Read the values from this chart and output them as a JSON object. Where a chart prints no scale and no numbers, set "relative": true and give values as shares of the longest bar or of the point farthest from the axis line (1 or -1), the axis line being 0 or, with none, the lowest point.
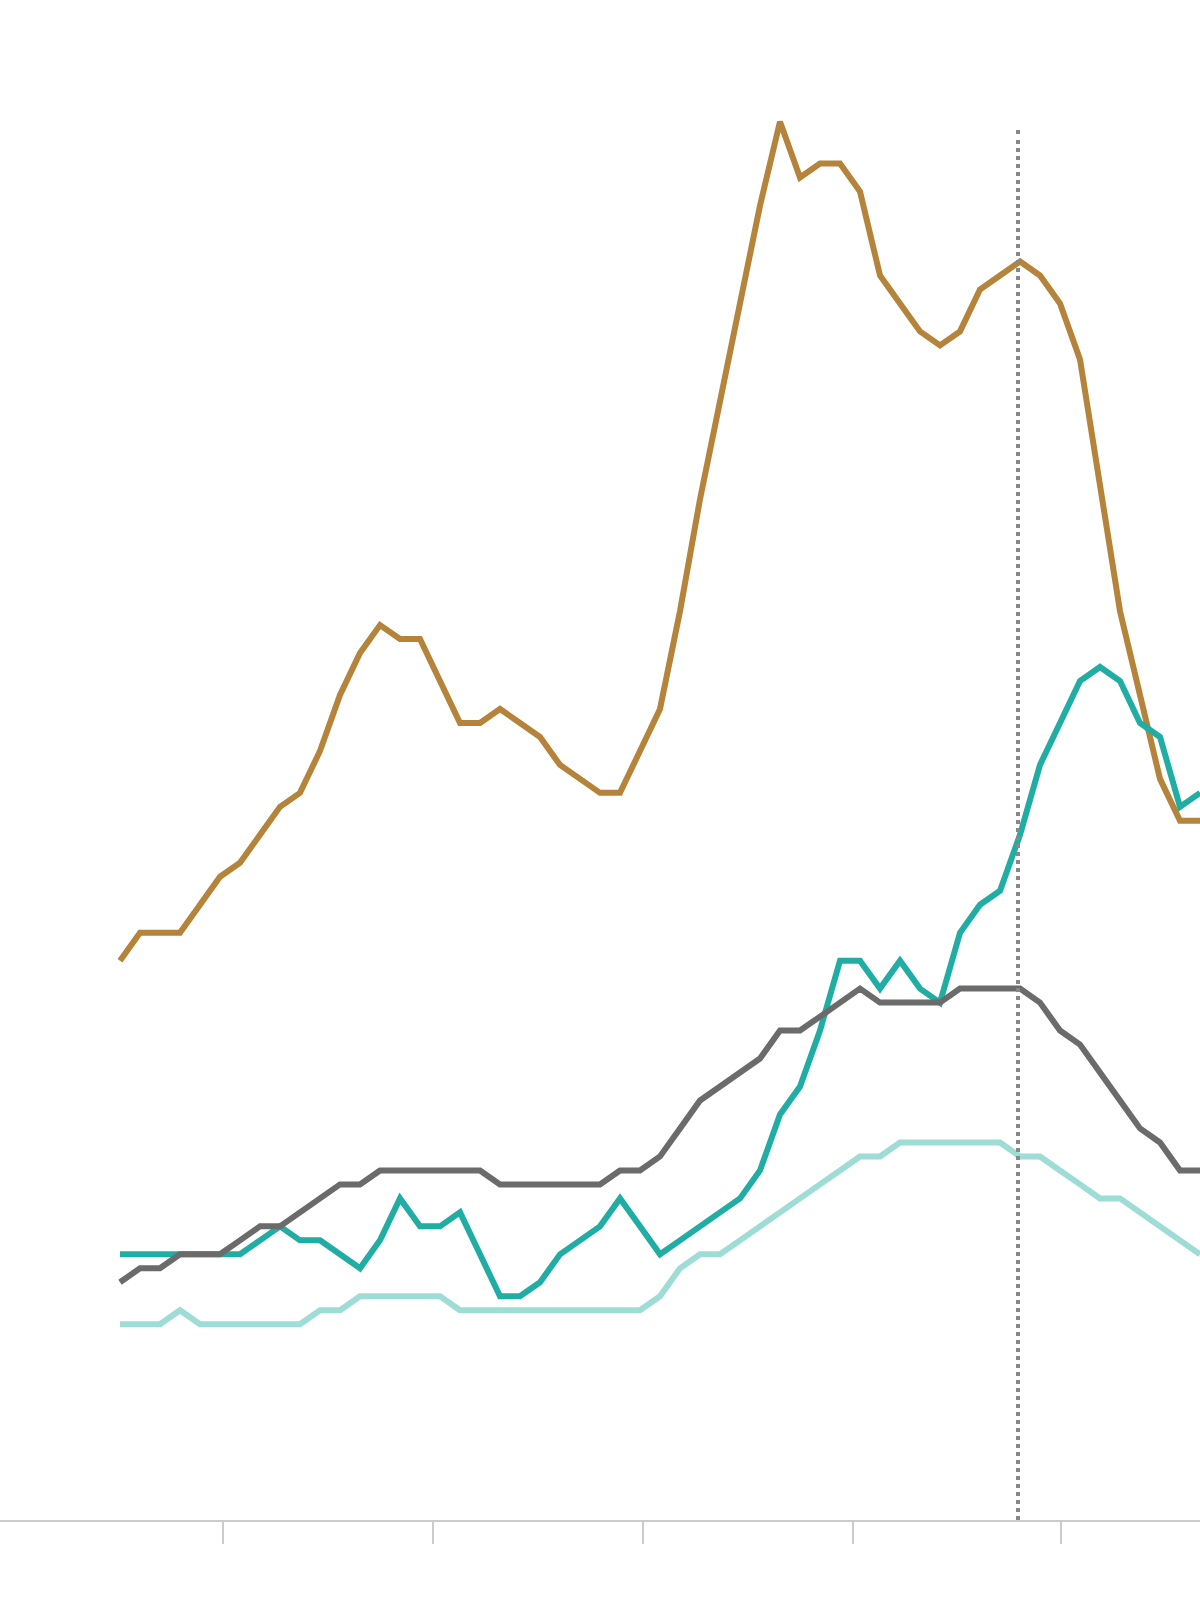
{
  "chart_data": {
    "type": "line",
    "relative": true,
    "line_style": "solid",
    "categories": [
      null,
      null,
      null,
      null,
      null,
      null,
      null,
      null,
      null,
      null,
      null,
      null,
      null,
      null,
      null,
      null,
      null,
      null,
      null,
      null,
      null,
      null,
      null,
      null,
      null,
      null,
      null,
      null,
      null,
      null,
      null,
      null,
      null,
      null,
      null,
      null,
      null,
      null,
      null,
      null,
      null,
      null,
      null,
      null,
      null,
      null,
      null,
      null,
      null,
      null,
      null,
      null,
      null,
      null,
      null
    ],
    "series": [
      {
        "color": "#b5843a",
        "values": [
          0.4,
          0.42,
          0.42,
          0.42,
          0.44,
          0.46,
          0.47,
          0.49,
          0.51,
          0.52,
          0.55,
          0.59,
          0.62,
          0.64,
          0.63,
          0.63,
          0.6,
          0.57,
          0.57,
          0.58,
          0.57,
          0.56,
          0.54,
          0.53,
          0.52,
          0.52,
          0.55,
          0.58,
          0.65,
          0.73,
          0.8,
          0.87,
          0.94,
          1.0,
          0.96,
          0.97,
          0.97,
          0.95,
          0.89,
          0.87,
          0.85,
          0.84,
          0.85,
          0.88,
          0.89,
          0.9,
          0.89,
          0.87,
          0.83,
          0.74,
          0.65,
          0.59,
          0.53,
          0.5,
          0.5
        ]
      },
      {
        "color": "#20ada4",
        "values": [
          0.19,
          0.19,
          0.19,
          0.19,
          0.19,
          0.19,
          0.19,
          0.2,
          0.21,
          0.2,
          0.2,
          0.19,
          0.18,
          0.2,
          0.23,
          0.21,
          0.21,
          0.22,
          0.19,
          0.16,
          0.16,
          0.17,
          0.19,
          0.2,
          0.21,
          0.23,
          0.21,
          0.19,
          0.2,
          0.21,
          0.22,
          0.23,
          0.25,
          0.29,
          0.31,
          0.35,
          0.4,
          0.4,
          0.38,
          0.4,
          0.38,
          0.37,
          0.42,
          0.44,
          0.45,
          0.49,
          0.54,
          0.57,
          0.6,
          0.61,
          0.6,
          0.57,
          0.56,
          0.51,
          0.52
        ]
      },
      {
        "color": "#6b6b6b",
        "values": [
          0.17,
          0.18,
          0.18,
          0.19,
          0.19,
          0.19,
          0.2,
          0.21,
          0.21,
          0.22,
          0.23,
          0.24,
          0.24,
          0.25,
          0.25,
          0.25,
          0.25,
          0.25,
          0.25,
          0.24,
          0.24,
          0.24,
          0.24,
          0.24,
          0.24,
          0.25,
          0.25,
          0.26,
          0.28,
          0.3,
          0.31,
          0.32,
          0.33,
          0.35,
          0.35,
          0.36,
          0.37,
          0.38,
          0.37,
          0.37,
          0.37,
          0.37,
          0.38,
          0.38,
          0.38,
          0.38,
          0.37,
          0.35,
          0.34,
          0.32,
          0.3,
          0.28,
          0.27,
          0.25,
          0.25
        ]
      },
      {
        "color": "#9edcd6",
        "values": [
          0.14,
          0.14,
          0.14,
          0.15,
          0.14,
          0.14,
          0.14,
          0.14,
          0.14,
          0.14,
          0.15,
          0.15,
          0.16,
          0.16,
          0.16,
          0.16,
          0.16,
          0.15,
          0.15,
          0.15,
          0.15,
          0.15,
          0.15,
          0.15,
          0.15,
          0.15,
          0.15,
          0.16,
          0.18,
          0.19,
          0.19,
          0.2,
          0.21,
          0.22,
          0.23,
          0.24,
          0.25,
          0.26,
          0.26,
          0.27,
          0.27,
          0.27,
          0.27,
          0.27,
          0.27,
          0.26,
          0.26,
          0.25,
          0.24,
          0.23,
          0.23,
          0.22,
          0.21,
          0.2,
          0.19
        ]
      }
    ]
  }
}
